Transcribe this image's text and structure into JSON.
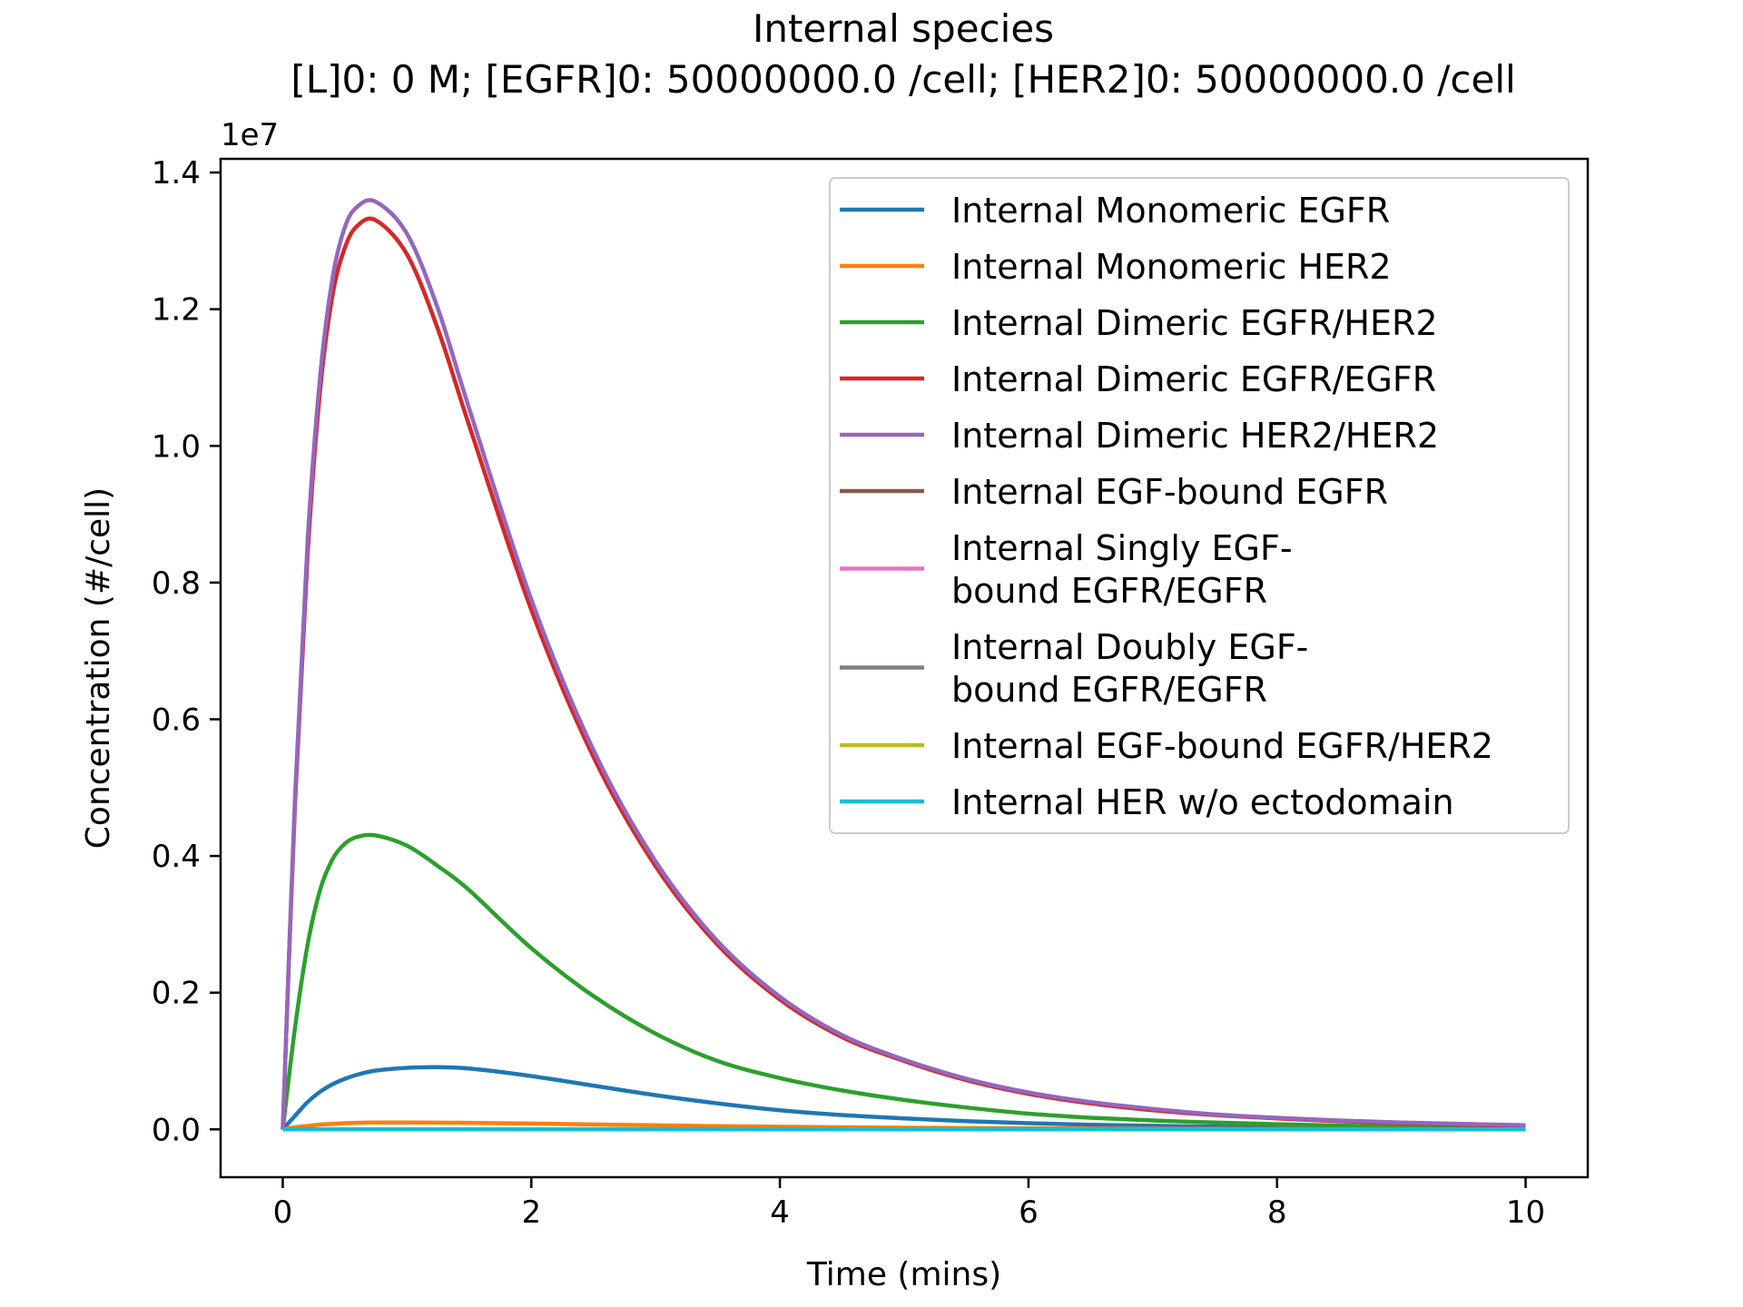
{
  "chart_data": {
    "type": "line",
    "title": "Internal species",
    "subtitle": "[L]0: 0 M; [EGFR]0: 50000000.0 /cell; [HER2]0: 50000000.0 /cell",
    "xlabel": "Time (mins)",
    "ylabel": "Concentration (#/cell)",
    "y_offset_label": "1e7",
    "xlim": [
      -0.5,
      10.5
    ],
    "ylim": [
      -0.07,
      1.42
    ],
    "y_scale_factor": 10000000,
    "x_ticks": [
      0,
      2,
      4,
      6,
      8,
      10
    ],
    "x_tick_labels": [
      "0",
      "2",
      "4",
      "6",
      "8",
      "10"
    ],
    "y_ticks": [
      0.0,
      0.2,
      0.4,
      0.6,
      0.8,
      1.0,
      1.2,
      1.4
    ],
    "y_tick_labels": [
      "0.0",
      "0.2",
      "0.4",
      "0.6",
      "0.8",
      "1.0",
      "1.2",
      "1.4"
    ],
    "grid": false,
    "legend_position": "upper right",
    "x": [
      0,
      0.1,
      0.2,
      0.3,
      0.4,
      0.5,
      0.6,
      0.75,
      1.0,
      1.25,
      1.5,
      2.0,
      2.5,
      3.0,
      3.5,
      4.0,
      4.5,
      5.0,
      5.5,
      6.0,
      6.5,
      7.0,
      7.5,
      8.0,
      8.5,
      9.0,
      9.5,
      10.0
    ],
    "series": [
      {
        "name": "Internal Monomeric EGFR",
        "color": "#1f77b4",
        "values": [
          0,
          0.02,
          0.04,
          0.055,
          0.066,
          0.074,
          0.08,
          0.086,
          0.09,
          0.091,
          0.089,
          0.078,
          0.064,
          0.05,
          0.038,
          0.028,
          0.021,
          0.016,
          0.012,
          0.009,
          0.0068,
          0.0052,
          0.004,
          0.003,
          0.0023,
          0.0018,
          0.0013,
          0.001
        ]
      },
      {
        "name": "Internal Monomeric HER2",
        "color": "#ff7f0e",
        "values": [
          0,
          0.003,
          0.005,
          0.007,
          0.008,
          0.009,
          0.0095,
          0.01,
          0.01,
          0.0098,
          0.0095,
          0.0085,
          0.0072,
          0.006,
          0.0048,
          0.0038,
          0.003,
          0.0024,
          0.0019,
          0.0015,
          0.0012,
          0.0009,
          0.0007,
          0.0005,
          0.0004,
          0.0003,
          0.0002,
          0.0001
        ]
      },
      {
        "name": "Internal Dimeric EGFR/HER2",
        "color": "#2ca02c",
        "values": [
          0,
          0.15,
          0.27,
          0.35,
          0.395,
          0.418,
          0.428,
          0.43,
          0.415,
          0.385,
          0.35,
          0.265,
          0.195,
          0.14,
          0.1,
          0.075,
          0.057,
          0.043,
          0.032,
          0.023,
          0.017,
          0.013,
          0.01,
          0.0075,
          0.0055,
          0.0042,
          0.0031,
          0.0023
        ]
      },
      {
        "name": "Internal Dimeric EGFR/EGFR",
        "color": "#d62728",
        "values": [
          0,
          0.48,
          0.84,
          1.08,
          1.22,
          1.29,
          1.322,
          1.33,
          1.28,
          1.17,
          1.03,
          0.76,
          0.545,
          0.385,
          0.27,
          0.19,
          0.135,
          0.1,
          0.072,
          0.052,
          0.038,
          0.028,
          0.021,
          0.016,
          0.012,
          0.009,
          0.007,
          0.005
        ]
      },
      {
        "name": "Internal Dimeric HER2/HER2",
        "color": "#9467bd",
        "values": [
          0,
          0.49,
          0.86,
          1.1,
          1.245,
          1.32,
          1.35,
          1.357,
          1.31,
          1.2,
          1.055,
          0.775,
          0.555,
          0.392,
          0.275,
          0.194,
          0.138,
          0.102,
          0.074,
          0.054,
          0.04,
          0.03,
          0.022,
          0.017,
          0.013,
          0.01,
          0.008,
          0.006
        ]
      },
      {
        "name": "Internal EGF-bound EGFR",
        "color": "#8c564b",
        "values": [
          0,
          0,
          0,
          0,
          0,
          0,
          0,
          0,
          0,
          0,
          0,
          0,
          0,
          0,
          0,
          0,
          0,
          0,
          0,
          0,
          0,
          0,
          0,
          0,
          0,
          0,
          0,
          0
        ]
      },
      {
        "name": "Internal Singly EGF-\nbound EGFR/EGFR",
        "color": "#e377c2",
        "values": [
          0,
          0,
          0,
          0,
          0,
          0,
          0,
          0,
          0,
          0,
          0,
          0,
          0,
          0,
          0,
          0,
          0,
          0,
          0,
          0,
          0,
          0,
          0,
          0,
          0,
          0,
          0,
          0
        ]
      },
      {
        "name": "Internal Doubly EGF-\nbound EGFR/EGFR",
        "color": "#7f7f7f",
        "values": [
          0,
          0,
          0,
          0,
          0,
          0,
          0,
          0,
          0,
          0,
          0,
          0,
          0,
          0,
          0,
          0,
          0,
          0,
          0,
          0,
          0,
          0,
          0,
          0,
          0,
          0,
          0,
          0
        ]
      },
      {
        "name": "Internal EGF-bound EGFR/HER2",
        "color": "#bcbd22",
        "values": [
          0,
          0,
          0,
          0,
          0,
          0,
          0,
          0,
          0,
          0,
          0,
          0,
          0,
          0,
          0,
          0,
          0,
          0,
          0,
          0,
          0,
          0,
          0,
          0,
          0,
          0,
          0,
          0
        ]
      },
      {
        "name": "Internal HER w/o ectodomain",
        "color": "#17becf",
        "values": [
          0,
          0,
          0,
          0,
          0,
          0,
          0,
          0,
          0,
          0,
          0,
          0,
          0,
          0,
          0,
          0,
          0,
          0,
          0,
          0,
          0,
          0,
          0,
          0,
          0,
          0,
          0,
          0
        ]
      }
    ]
  }
}
